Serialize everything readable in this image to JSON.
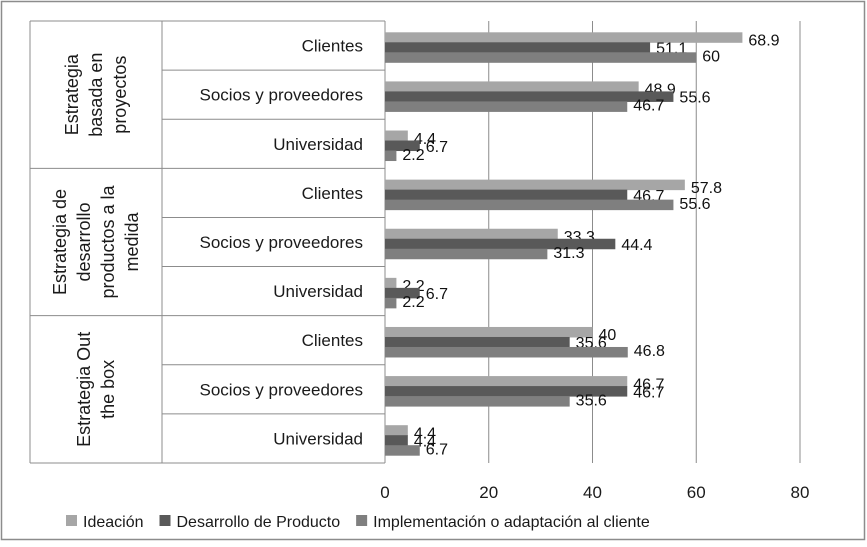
{
  "chart_data": {
    "type": "bar",
    "orientation": "horizontal",
    "groups": [
      {
        "label": "Estrategia basada en proyectos",
        "label_lines": [
          "Estrategia",
          "basada en",
          "proyectos"
        ],
        "categories": [
          "Clientes",
          "Socios y proveedores",
          "Universidad"
        ]
      },
      {
        "label": "Estrategia de desarrollo productos a la medida",
        "label_lines": [
          "Estrategia de",
          "desarrollo",
          "productos a la",
          "medida"
        ],
        "categories": [
          "Clientes",
          "Socios y proveedores",
          "Universidad"
        ]
      },
      {
        "label": "Estrategia Out the box",
        "label_lines": [
          "Estrategia Out",
          "the box"
        ],
        "categories": [
          "Clientes",
          "Socios y proveedores",
          "Universidad"
        ]
      }
    ],
    "series": [
      {
        "name": "Ideación",
        "color": "#a6a6a6",
        "values": [
          68.9,
          48.9,
          4.4,
          57.8,
          33.3,
          2.2,
          40,
          46.7,
          4.4
        ]
      },
      {
        "name": "Desarrollo de Producto",
        "color": "#595959",
        "values": [
          51.1,
          55.6,
          6.7,
          46.7,
          44.4,
          6.7,
          35.6,
          46.7,
          4.4
        ]
      },
      {
        "name": "Implementación o adaptación al cliente",
        "color": "#7f7f7f",
        "values": [
          60,
          46.7,
          2.2,
          55.6,
          31.3,
          2.2,
          46.8,
          35.6,
          6.7
        ]
      }
    ],
    "xlim": [
      0,
      80
    ],
    "xticks": [
      0,
      20,
      40,
      60,
      80
    ],
    "grid": true,
    "legend_position": "bottom",
    "data_labels": true
  }
}
